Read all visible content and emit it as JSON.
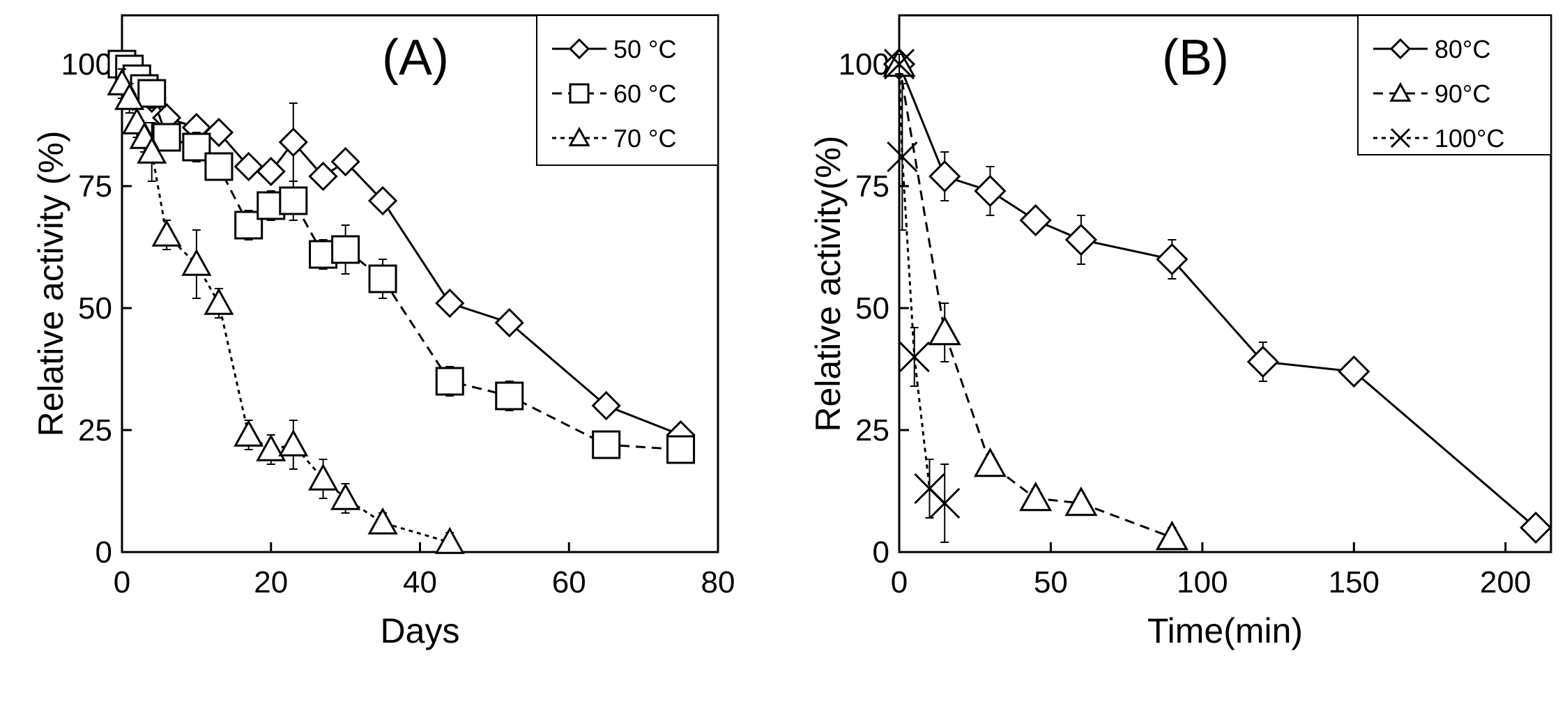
{
  "chart_data": [
    {
      "type": "line",
      "panel_label": "(A)",
      "xlabel": "Days",
      "ylabel": "Relative activity (%)",
      "xlim": [
        0,
        80
      ],
      "ylim": [
        0,
        110
      ],
      "xticks": [
        0,
        20,
        40,
        60,
        80
      ],
      "yticks": [
        0,
        25,
        50,
        75,
        100
      ],
      "legend_position": "top-right",
      "series": [
        {
          "name": "50 °C",
          "marker": "diamond",
          "line": "solid",
          "x": [
            0,
            1,
            2,
            3,
            4,
            6,
            10,
            13,
            17,
            20,
            23,
            27,
            30,
            35,
            44,
            52,
            65,
            75
          ],
          "y": [
            100,
            99,
            98,
            96,
            93,
            89,
            87,
            86,
            79,
            78,
            84,
            77,
            80,
            72,
            51,
            47,
            30,
            24
          ],
          "err": [
            2,
            2,
            2,
            2,
            2,
            2,
            2,
            2,
            2,
            2,
            8,
            2,
            2,
            2,
            2,
            2,
            2,
            2
          ]
        },
        {
          "name": "60 °C",
          "marker": "square",
          "line": "dashed",
          "x": [
            0,
            1,
            2,
            3,
            4,
            6,
            10,
            13,
            17,
            20,
            23,
            27,
            30,
            35,
            44,
            52,
            65,
            75
          ],
          "y": [
            100,
            99,
            97,
            95,
            94,
            85,
            83,
            79,
            67,
            71,
            72,
            61,
            62,
            56,
            35,
            32,
            22,
            21
          ],
          "err": [
            2,
            3,
            3,
            3,
            3,
            2,
            3,
            2,
            3,
            3,
            4,
            3,
            5,
            4,
            3,
            3,
            2,
            2
          ]
        },
        {
          "name": "70 °C",
          "marker": "triangle",
          "line": "dotted",
          "x": [
            0,
            1,
            2,
            3,
            4,
            6,
            10,
            13,
            17,
            20,
            23,
            27,
            30,
            35,
            44
          ],
          "y": [
            96,
            93,
            88,
            85,
            82,
            65,
            59,
            51,
            24,
            21,
            22,
            15,
            11,
            6,
            2
          ],
          "err": [
            3,
            3,
            3,
            3,
            6,
            3,
            7,
            3,
            3,
            3,
            5,
            4,
            3,
            2,
            2
          ]
        }
      ]
    },
    {
      "type": "line",
      "panel_label": "(B)",
      "xlabel": "Time(min)",
      "ylabel": "Relative activity(%)",
      "xlim": [
        0,
        215
      ],
      "ylim": [
        0,
        110
      ],
      "xticks": [
        0,
        50,
        100,
        150,
        200
      ],
      "yticks": [
        0,
        25,
        50,
        75,
        100
      ],
      "legend_position": "top-right",
      "series": [
        {
          "name": "80°C",
          "marker": "diamond",
          "line": "solid",
          "x": [
            0,
            15,
            30,
            45,
            60,
            90,
            120,
            150,
            210
          ],
          "y": [
            100,
            77,
            74,
            68,
            64,
            60,
            39,
            37,
            5
          ],
          "err": [
            2,
            5,
            5,
            2,
            5,
            4,
            4,
            2,
            1
          ]
        },
        {
          "name": "90°C",
          "marker": "triangle",
          "line": "dashed",
          "x": [
            0,
            15,
            30,
            45,
            60,
            90
          ],
          "y": [
            100,
            45,
            18,
            11,
            10,
            3
          ],
          "err": [
            2,
            6,
            2,
            2,
            2,
            2
          ]
        },
        {
          "name": "100°C",
          "marker": "cross",
          "line": "dotted",
          "x": [
            0,
            1,
            5,
            10,
            15
          ],
          "y": [
            100,
            81,
            40,
            13,
            10
          ],
          "err": [
            2,
            15,
            6,
            6,
            8
          ]
        }
      ]
    }
  ]
}
